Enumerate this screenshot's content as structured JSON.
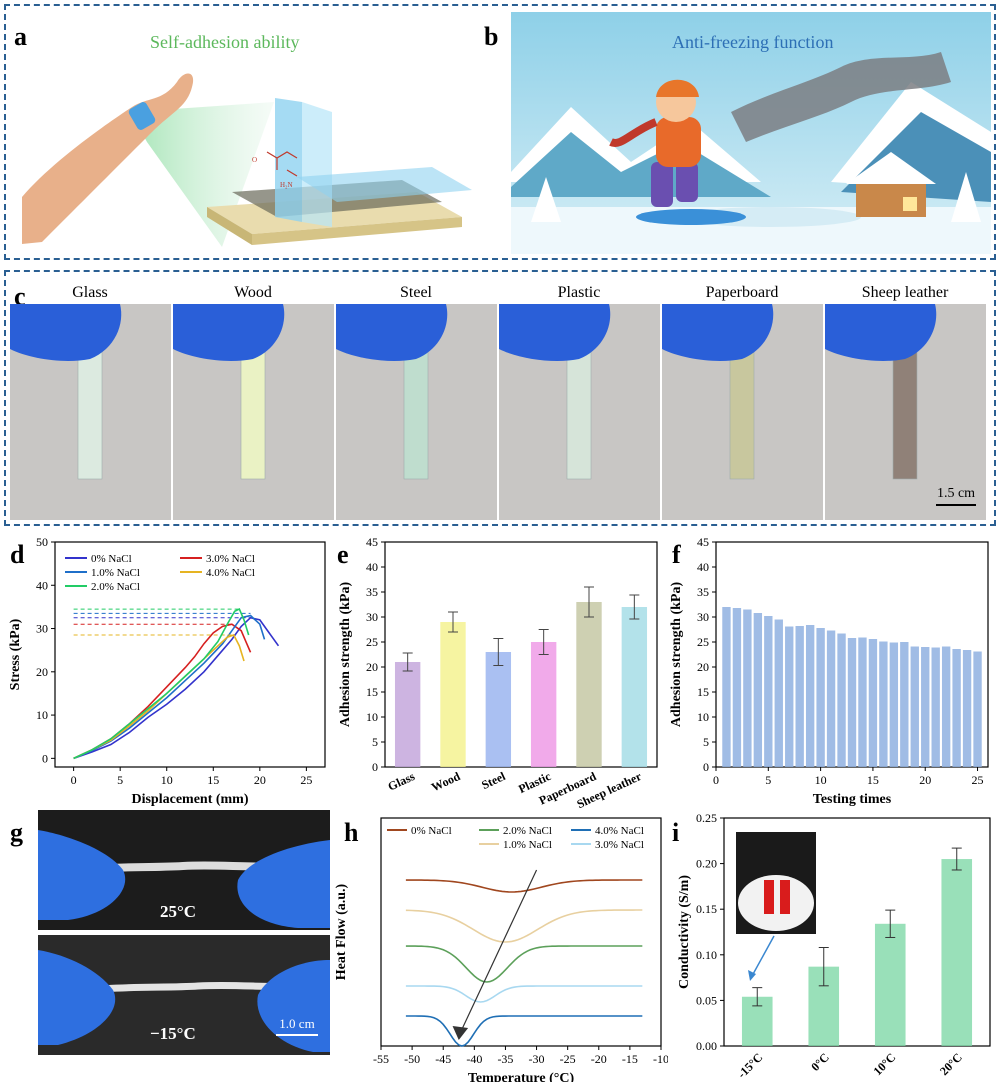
{
  "panel_labels": {
    "a": "a",
    "b": "b",
    "c": "c",
    "d": "d",
    "e": "e",
    "f": "f",
    "g": "g",
    "h": "h",
    "i": "i"
  },
  "panel_a": {
    "title": "Self-adhesion ability",
    "title_color": "#5cb85c"
  },
  "panel_b": {
    "title": "Anti-freezing function",
    "title_color": "#2d6fb5"
  },
  "panel_c": {
    "materials": [
      "Glass",
      "Wood",
      "Steel",
      "Plastic",
      "Paperboard",
      "Sheep leather"
    ],
    "scale_bar": "1.5 cm"
  },
  "panel_g": {
    "top_temp": "25°C",
    "bottom_temp": "−15°C",
    "scale_bar": "1.0 cm"
  },
  "chart_data": [
    {
      "id": "d",
      "type": "line",
      "xlabel": "Displacement (mm)",
      "ylabel": "Stress (kPa)",
      "xlim": [
        -2,
        27
      ],
      "ylim": [
        -2,
        50
      ],
      "xticks": [
        0,
        5,
        10,
        15,
        20,
        25
      ],
      "yticks": [
        0,
        10,
        20,
        30,
        40,
        50
      ],
      "legend_position": "top-left",
      "series": [
        {
          "name": "0% NaCl",
          "color": "#3333cc",
          "peak": 32.5,
          "points": [
            [
              0,
              0
            ],
            [
              2,
              1.5
            ],
            [
              4,
              3.2
            ],
            [
              6,
              6
            ],
            [
              8,
              9.5
            ],
            [
              10,
              12.5
            ],
            [
              12,
              16
            ],
            [
              14,
              20
            ],
            [
              16,
              25
            ],
            [
              17,
              27.5
            ],
            [
              18,
              30.5
            ],
            [
              19,
              32.5
            ],
            [
              20,
              32
            ],
            [
              21,
              29
            ],
            [
              22,
              26
            ]
          ]
        },
        {
          "name": "3.0% NaCl",
          "color": "#d62020",
          "peak": 31,
          "points": [
            [
              0,
              0
            ],
            [
              2,
              2
            ],
            [
              4,
              4.5
            ],
            [
              6,
              8
            ],
            [
              8,
              12
            ],
            [
              10,
              16.5
            ],
            [
              12,
              21
            ],
            [
              13,
              23.5
            ],
            [
              14,
              26.5
            ],
            [
              15,
              29
            ],
            [
              16,
              30.5
            ],
            [
              17,
              31
            ],
            [
              18,
              29.5
            ],
            [
              18.5,
              27
            ],
            [
              19,
              24.5
            ]
          ]
        },
        {
          "name": "1.0% NaCl",
          "color": "#1f6fc9",
          "peak": 33.5,
          "points": [
            [
              0,
              0
            ],
            [
              2,
              1.8
            ],
            [
              4,
              4
            ],
            [
              6,
              7
            ],
            [
              8,
              10.5
            ],
            [
              10,
              14
            ],
            [
              12,
              18
            ],
            [
              14,
              22
            ],
            [
              16,
              26.5
            ],
            [
              17,
              29.5
            ],
            [
              18,
              32.5
            ],
            [
              19,
              33
            ],
            [
              20,
              31
            ],
            [
              20.5,
              27.5
            ]
          ]
        },
        {
          "name": "4.0% NaCl",
          "color": "#e6b422",
          "peak": 28.5,
          "points": [
            [
              0,
              0
            ],
            [
              2,
              2
            ],
            [
              4,
              4.2
            ],
            [
              6,
              7.5
            ],
            [
              8,
              11
            ],
            [
              10,
              15
            ],
            [
              12,
              19
            ],
            [
              14,
              23
            ],
            [
              15.5,
              26
            ],
            [
              16.5,
              28
            ],
            [
              17.2,
              28.5
            ],
            [
              17.8,
              26
            ],
            [
              18.3,
              22.5
            ]
          ]
        },
        {
          "name": "2.0% NaCl",
          "color": "#22cc66",
          "peak": 34.5,
          "points": [
            [
              0,
              0
            ],
            [
              2,
              2
            ],
            [
              4,
              4.5
            ],
            [
              6,
              8
            ],
            [
              8,
              11.5
            ],
            [
              10,
              15
            ],
            [
              12,
              19
            ],
            [
              14,
              23
            ],
            [
              15.5,
              27
            ],
            [
              16.5,
              31
            ],
            [
              17.3,
              34
            ],
            [
              17.8,
              34.5
            ],
            [
              18.3,
              32
            ],
            [
              18.8,
              28.5
            ]
          ]
        }
      ]
    },
    {
      "id": "e",
      "type": "bar",
      "ylabel": "Adhesion strength (kPa)",
      "ylim": [
        0,
        45
      ],
      "yticks": [
        0,
        5,
        10,
        15,
        20,
        25,
        30,
        35,
        40,
        45
      ],
      "categories": [
        "Glass",
        "Wood",
        "Steel",
        "Plastic",
        "Paperboard",
        "Sheep leather"
      ],
      "values": [
        21,
        29,
        23,
        25,
        33,
        32
      ],
      "errors": [
        1.8,
        2.0,
        2.7,
        2.5,
        3.0,
        2.4
      ],
      "colors": [
        "#c4a7dc",
        "#f4f290",
        "#9bb5f0",
        "#ef9be6",
        "#c5c8a4",
        "#a6dde6"
      ]
    },
    {
      "id": "f",
      "type": "bar",
      "xlabel": "Testing times",
      "ylabel": "Adhesion strength (kPa)",
      "xlim": [
        0,
        26
      ],
      "ylim": [
        0,
        45
      ],
      "xticks": [
        0,
        5,
        10,
        15,
        20,
        25
      ],
      "yticks": [
        0,
        5,
        10,
        15,
        20,
        25,
        30,
        35,
        40,
        45
      ],
      "color": "#8fb0e0",
      "x": [
        1,
        2,
        3,
        4,
        5,
        6,
        7,
        8,
        9,
        10,
        11,
        12,
        13,
        14,
        15,
        16,
        17,
        18,
        19,
        20,
        21,
        22,
        23,
        24,
        25
      ],
      "values": [
        32,
        31.8,
        31.5,
        30.8,
        30.2,
        29.5,
        28.1,
        28.2,
        28.4,
        27.8,
        27.3,
        26.7,
        25.8,
        25.9,
        25.6,
        25.1,
        24.9,
        25.0,
        24.1,
        24.0,
        23.9,
        24.1,
        23.6,
        23.4,
        23.1
      ]
    },
    {
      "id": "h",
      "type": "line",
      "xlabel": "Temperature (°C)",
      "ylabel": "Heat Flow (a.u.)",
      "xlim": [
        -55,
        -10
      ],
      "xticks": [
        -55,
        -50,
        -45,
        -40,
        -35,
        -30,
        -25,
        -20,
        -15,
        -10
      ],
      "legend_position": "top",
      "series": [
        {
          "name": "0% NaCl",
          "color": "#a0471f"
        },
        {
          "name": "1.0% NaCl",
          "color": "#e8d0a0"
        },
        {
          "name": "2.0% NaCl",
          "color": "#5ca05a"
        },
        {
          "name": "3.0% NaCl",
          "color": "#a8d8f0"
        },
        {
          "name": "4.0% NaCl",
          "color": "#1f6fb5"
        }
      ]
    },
    {
      "id": "i",
      "type": "bar",
      "ylabel": "Conductivity (S/m)",
      "ylim": [
        0,
        0.25
      ],
      "yticks": [
        0.0,
        0.05,
        0.1,
        0.15,
        0.2,
        0.25
      ],
      "categories": [
        "-15°C",
        "0°C",
        "10°C",
        "20°C"
      ],
      "values": [
        0.054,
        0.087,
        0.134,
        0.205
      ],
      "errors": [
        0.01,
        0.021,
        0.015,
        0.012
      ],
      "color": "#7fd8a8"
    }
  ]
}
